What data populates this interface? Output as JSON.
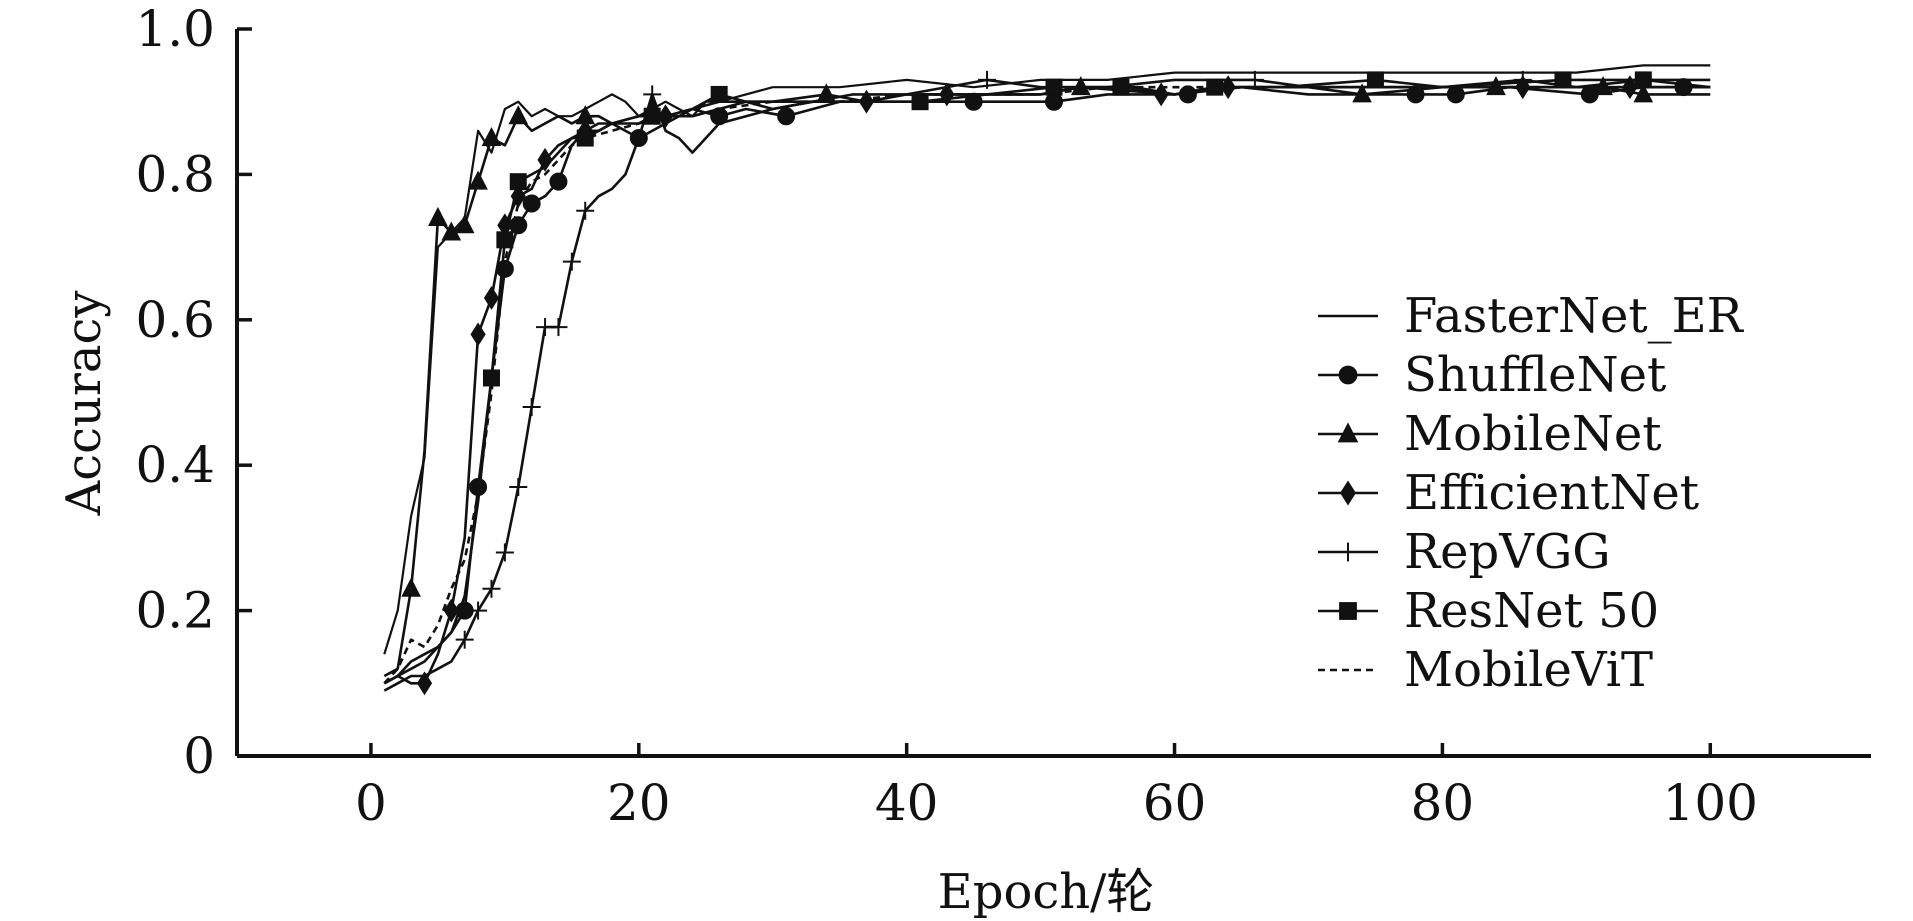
{
  "chart_data": {
    "type": "line",
    "title": "",
    "xlabel": "Epoch/轮",
    "ylabel": "Accuracy",
    "xlim": [
      -10,
      112
    ],
    "ylim": [
      0,
      1.0
    ],
    "xticks": [
      0,
      20,
      40,
      60,
      80,
      100
    ],
    "yticks": [
      0,
      0.2,
      0.4,
      0.6,
      0.8,
      1.0
    ],
    "xtick_labels": [
      "0",
      "20",
      "40",
      "60",
      "80",
      "100"
    ],
    "ytick_labels": [
      "0",
      "0.2",
      "0.4",
      "0.6",
      "0.8",
      "1.0"
    ],
    "grid": false,
    "legend_position": "right",
    "series": [
      {
        "name": "FasterNet_ER",
        "marker": "none",
        "dash": "solid",
        "color": "#111111",
        "x": [
          1,
          2,
          3,
          4,
          5,
          6,
          7,
          8,
          9,
          10,
          11,
          12,
          13,
          14,
          15,
          16,
          17,
          18,
          19,
          20,
          21,
          22,
          23,
          24,
          25,
          26,
          28,
          30,
          35,
          40,
          45,
          50,
          55,
          60,
          65,
          70,
          75,
          80,
          85,
          90,
          95,
          100
        ],
        "y": [
          0.14,
          0.2,
          0.33,
          0.41,
          0.7,
          0.72,
          0.74,
          0.86,
          0.83,
          0.89,
          0.9,
          0.88,
          0.89,
          0.88,
          0.88,
          0.89,
          0.9,
          0.91,
          0.9,
          0.88,
          0.89,
          0.9,
          0.89,
          0.88,
          0.9,
          0.9,
          0.91,
          0.92,
          0.92,
          0.93,
          0.92,
          0.93,
          0.93,
          0.94,
          0.94,
          0.94,
          0.94,
          0.94,
          0.94,
          0.94,
          0.95,
          0.95
        ]
      },
      {
        "name": "ShuffleNet",
        "marker": "circle",
        "dash": "solid",
        "color": "#111111",
        "x": [
          1,
          2,
          3,
          4,
          5,
          6,
          7,
          8,
          9,
          10,
          11,
          12,
          13,
          14,
          15,
          16,
          17,
          18,
          20,
          22,
          24,
          26,
          28,
          31,
          35,
          40,
          45,
          51,
          55,
          60,
          65,
          70,
          78,
          81,
          85,
          91,
          95,
          98,
          100
        ],
        "y": [
          0.1,
          0.11,
          0.12,
          0.13,
          0.15,
          0.17,
          0.2,
          0.37,
          0.52,
          0.67,
          0.73,
          0.76,
          0.77,
          0.79,
          0.84,
          0.86,
          0.87,
          0.87,
          0.85,
          0.87,
          0.89,
          0.88,
          0.89,
          0.88,
          0.9,
          0.9,
          0.9,
          0.9,
          0.91,
          0.91,
          0.92,
          0.91,
          0.91,
          0.91,
          0.92,
          0.91,
          0.92,
          0.92,
          0.92
        ],
        "marker_x": [
          7,
          8,
          10,
          11,
          12,
          14,
          20,
          26,
          31,
          45,
          51,
          61,
          78,
          81,
          91,
          98
        ],
        "marker_y": [
          0.2,
          0.37,
          0.67,
          0.73,
          0.76,
          0.79,
          0.85,
          0.88,
          0.88,
          0.9,
          0.9,
          0.91,
          0.91,
          0.91,
          0.91,
          0.92
        ]
      },
      {
        "name": "MobileNet",
        "marker": "triangle",
        "dash": "solid",
        "color": "#111111",
        "x": [
          1,
          2,
          3,
          4,
          5,
          6,
          7,
          8,
          9,
          10,
          11,
          12,
          13,
          14,
          15,
          16,
          17,
          18,
          20,
          21,
          22,
          24,
          26,
          28,
          30,
          34,
          37,
          40,
          44,
          50,
          53,
          60,
          65,
          70,
          74,
          80,
          84,
          88,
          92,
          95,
          100
        ],
        "y": [
          0.11,
          0.12,
          0.23,
          0.42,
          0.74,
          0.72,
          0.73,
          0.79,
          0.85,
          0.84,
          0.88,
          0.86,
          0.87,
          0.88,
          0.87,
          0.88,
          0.88,
          0.87,
          0.88,
          0.89,
          0.88,
          0.89,
          0.9,
          0.9,
          0.9,
          0.91,
          0.9,
          0.91,
          0.91,
          0.91,
          0.92,
          0.91,
          0.92,
          0.92,
          0.91,
          0.92,
          0.92,
          0.92,
          0.92,
          0.91,
          0.91
        ],
        "marker_x": [
          3,
          5,
          6,
          7,
          8,
          9,
          11,
          16,
          21,
          34,
          53,
          74,
          84,
          92,
          95
        ],
        "marker_y": [
          0.23,
          0.74,
          0.72,
          0.73,
          0.79,
          0.85,
          0.88,
          0.88,
          0.89,
          0.91,
          0.92,
          0.91,
          0.92,
          0.92,
          0.91
        ]
      },
      {
        "name": "EfficientNet",
        "marker": "diamond",
        "dash": "solid",
        "color": "#111111",
        "x": [
          1,
          2,
          3,
          4,
          5,
          6,
          7,
          8,
          9,
          10,
          11,
          12,
          13,
          14,
          15,
          16,
          17,
          18,
          20,
          22,
          24,
          26,
          28,
          30,
          33,
          37,
          40,
          43,
          47,
          50,
          53,
          57,
          60,
          64,
          68,
          72,
          75,
          80,
          86,
          90,
          94,
          100
        ],
        "y": [
          0.1,
          0.11,
          0.1,
          0.1,
          0.14,
          0.2,
          0.3,
          0.58,
          0.63,
          0.73,
          0.77,
          0.78,
          0.82,
          0.84,
          0.85,
          0.86,
          0.86,
          0.87,
          0.88,
          0.88,
          0.88,
          0.89,
          0.9,
          0.89,
          0.9,
          0.9,
          0.91,
          0.91,
          0.91,
          0.91,
          0.92,
          0.92,
          0.91,
          0.92,
          0.92,
          0.92,
          0.92,
          0.92,
          0.92,
          0.92,
          0.92,
          0.92
        ],
        "marker_x": [
          4,
          6,
          8,
          9,
          10,
          11,
          13,
          16,
          22,
          37,
          43,
          59,
          64,
          86,
          94
        ],
        "marker_y": [
          0.1,
          0.2,
          0.58,
          0.63,
          0.73,
          0.77,
          0.82,
          0.86,
          0.88,
          0.9,
          0.91,
          0.91,
          0.92,
          0.92,
          0.92
        ]
      },
      {
        "name": "RepVGG",
        "marker": "plus",
        "dash": "solid",
        "color": "#111111",
        "x": [
          1,
          2,
          3,
          4,
          5,
          6,
          7,
          8,
          9,
          10,
          11,
          12,
          13,
          14,
          15,
          16,
          17,
          18,
          19,
          20,
          21,
          22,
          23,
          24,
          25,
          26,
          28,
          30,
          33,
          36,
          40,
          46,
          50,
          55,
          60,
          66,
          70,
          75,
          80,
          86,
          90,
          95,
          100
        ],
        "y": [
          0.09,
          0.1,
          0.11,
          0.11,
          0.12,
          0.13,
          0.16,
          0.2,
          0.23,
          0.28,
          0.37,
          0.48,
          0.59,
          0.59,
          0.68,
          0.75,
          0.77,
          0.78,
          0.8,
          0.85,
          0.91,
          0.86,
          0.85,
          0.83,
          0.85,
          0.87,
          0.88,
          0.89,
          0.9,
          0.91,
          0.91,
          0.93,
          0.92,
          0.92,
          0.93,
          0.93,
          0.92,
          0.92,
          0.92,
          0.93,
          0.92,
          0.93,
          0.93
        ],
        "marker_x": [
          7,
          8,
          9,
          10,
          11,
          12,
          13,
          14,
          15,
          16,
          21,
          46,
          66,
          86
        ],
        "marker_y": [
          0.16,
          0.2,
          0.23,
          0.28,
          0.37,
          0.48,
          0.59,
          0.59,
          0.68,
          0.75,
          0.91,
          0.93,
          0.93,
          0.93
        ]
      },
      {
        "name": "ResNet 50",
        "marker": "square",
        "dash": "solid",
        "color": "#111111",
        "x": [
          1,
          2,
          3,
          4,
          5,
          6,
          7,
          8,
          9,
          10,
          11,
          12,
          13,
          14,
          15,
          16,
          17,
          18,
          20,
          21,
          22,
          24,
          26,
          28,
          30,
          33,
          36,
          41,
          46,
          51,
          56,
          60,
          63,
          68,
          75,
          80,
          89,
          95,
          100
        ],
        "y": [
          0.1,
          0.11,
          0.13,
          0.14,
          0.15,
          0.17,
          0.22,
          0.35,
          0.52,
          0.71,
          0.79,
          0.8,
          0.81,
          0.83,
          0.85,
          0.85,
          0.86,
          0.87,
          0.87,
          0.88,
          0.88,
          0.89,
          0.91,
          0.9,
          0.9,
          0.9,
          0.9,
          0.9,
          0.91,
          0.92,
          0.92,
          0.91,
          0.92,
          0.92,
          0.93,
          0.92,
          0.93,
          0.93,
          0.92
        ],
        "marker_x": [
          9,
          10,
          11,
          16,
          21,
          26,
          41,
          51,
          56,
          63,
          75,
          89,
          95
        ],
        "marker_y": [
          0.52,
          0.71,
          0.79,
          0.85,
          0.88,
          0.91,
          0.9,
          0.92,
          0.92,
          0.92,
          0.93,
          0.93,
          0.93
        ]
      },
      {
        "name": "MobileViT",
        "marker": "none",
        "dash": "dashed",
        "color": "#111111",
        "x": [
          1,
          2,
          3,
          4,
          5,
          6,
          7,
          8,
          9,
          10,
          11,
          12,
          13,
          14,
          15,
          16,
          18,
          20,
          22,
          24,
          26,
          30,
          35,
          40,
          45,
          50,
          55,
          60,
          65,
          70,
          75,
          80,
          85,
          90,
          95,
          100
        ],
        "y": [
          0.1,
          0.12,
          0.16,
          0.15,
          0.18,
          0.23,
          0.27,
          0.36,
          0.5,
          0.68,
          0.76,
          0.79,
          0.8,
          0.82,
          0.84,
          0.85,
          0.86,
          0.87,
          0.88,
          0.88,
          0.89,
          0.9,
          0.9,
          0.91,
          0.91,
          0.91,
          0.92,
          0.92,
          0.92,
          0.92,
          0.92,
          0.92,
          0.92,
          0.92,
          0.92,
          0.92
        ]
      }
    ]
  }
}
